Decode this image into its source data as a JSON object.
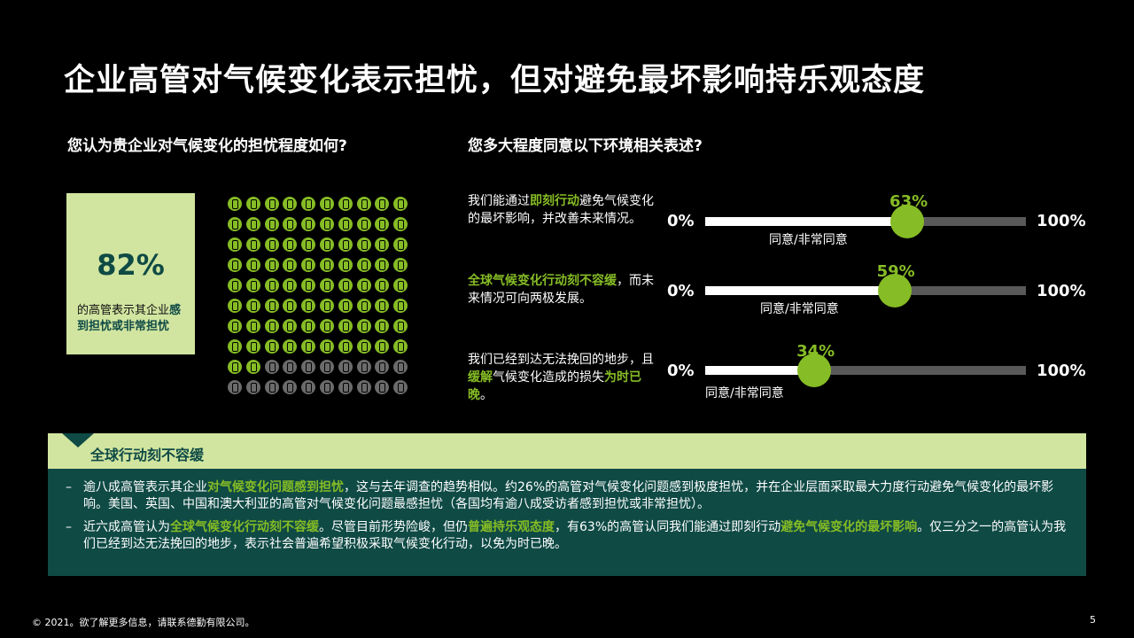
{
  "title": "企业高管对气候变化表示担忧，但对避免最坏影响持乐观态度",
  "left": {
    "question": "您认为贵企业对气候变化的担忧程度如何?",
    "percent": "82%",
    "desc_plain": "的高管表示其企业",
    "desc_bold": "感到担忧或非常担忧",
    "icons_total": 100,
    "icons_on": 82,
    "on_color": "#86bc25",
    "off_color": "#6b6b6b"
  },
  "right": {
    "question": "您多大程度同意以下环境相关表述?",
    "min_label": "0%",
    "max_label": "100%",
    "agree_label": "同意/非常同意",
    "statements": [
      {
        "pre": "我们能通过",
        "bold": "即刻行动",
        "post": "避免气候变化的最坏影响，并改善未来情况。",
        "value": 63,
        "value_label": "63%"
      },
      {
        "pre": "",
        "bold": "全球气候变化行动刻不容缓",
        "post": "，而未来情况可向两极发展。",
        "value": 59,
        "value_label": "59%"
      },
      {
        "pre": "我们已经到达无法挽回的地步，且",
        "bold": "缓解",
        "post": "气候变化造成的损失",
        "bold2": "为时已晚",
        "post2": "。",
        "value": 34,
        "value_label": "34%"
      }
    ]
  },
  "banner": {
    "title": "全球行动刻不容缓",
    "bullets": [
      {
        "dash": "–",
        "parts": [
          {
            "t": "逾八成高管表示其企业",
            "b": false
          },
          {
            "t": "对气候变化问题感到担忧",
            "b": true
          },
          {
            "t": "，这与去年调查的趋势相似。约26%的高管对气候变化问题感到极度担忧，并在企业层面采取最大力度行动避免气候变化的最坏影响。美国、英国、中国和澳大利亚的高管对气候变化问题最感担忧（各国均有逾八成受访者感到担忧或非常担忧）。",
            "b": false
          }
        ]
      },
      {
        "dash": "–",
        "parts": [
          {
            "t": "近六成高管认为",
            "b": false
          },
          {
            "t": "全球气候变化行动刻不容缓",
            "b": true
          },
          {
            "t": "。尽管目前形势险峻，但仍",
            "b": false
          },
          {
            "t": "普遍持乐观态度",
            "b": true
          },
          {
            "t": "，有63%的高管认同我们能通过即刻行动",
            "b": false
          },
          {
            "t": "避免气候变化的最坏影响",
            "b": true
          },
          {
            "t": "。仅三分之一的高管认为我们已经到达无法挽回的地步，表示社会普遍希望积极采取气候变化行动，以免为时已晚。",
            "b": false
          }
        ]
      }
    ]
  },
  "footer": "© 2021。欲了解更多信息，请联系德勤有限公司。",
  "page_number": "5"
}
